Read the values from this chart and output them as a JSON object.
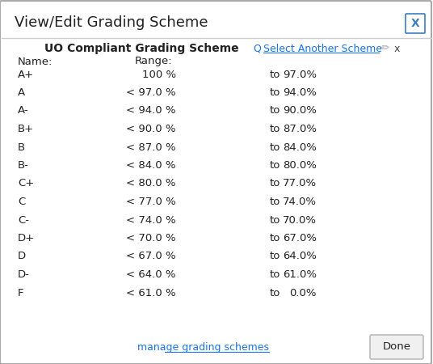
{
  "title_bar": "View/Edit Grading Scheme",
  "scheme_name": "UO Compliant Grading Scheme",
  "select_another": "Select Another Scheme",
  "name_header": "Name:",
  "range_header": "Range:",
  "grades": [
    "A+",
    "A",
    "A-",
    "B+",
    "B",
    "B-",
    "C+",
    "C",
    "C-",
    "D+",
    "D",
    "D-",
    "F"
  ],
  "range_from": [
    "100 %",
    "< 97.0 %",
    "< 94.0 %",
    "< 90.0 %",
    "< 87.0 %",
    "< 84.0 %",
    "< 80.0 %",
    "< 77.0 %",
    "< 74.0 %",
    "< 70.0 %",
    "< 67.0 %",
    "< 64.0 %",
    "< 61.0 %"
  ],
  "range_to": [
    "97.0%",
    "94.0%",
    "90.0%",
    "87.0%",
    "84.0%",
    "80.0%",
    "77.0%",
    "74.0%",
    "70.0%",
    "67.0%",
    "64.0%",
    "61.0%",
    "0.0%"
  ],
  "manage_link": "manage grading schemes",
  "done_btn": "Done",
  "bg_color": "#ffffff",
  "border_color": "#aaaaaa",
  "title_color": "#222222",
  "link_color": "#1a73e8",
  "header_sep_color": "#cccccc",
  "row_text_color": "#222222",
  "done_btn_bg": "#f0f0f0",
  "done_btn_border": "#bbbbbb",
  "x_btn_color": "#3a7ebf",
  "pencil_color": "#aaaaaa",
  "close_color": "#444444",
  "figsize": [
    5.36,
    4.5
  ],
  "dpi": 100
}
